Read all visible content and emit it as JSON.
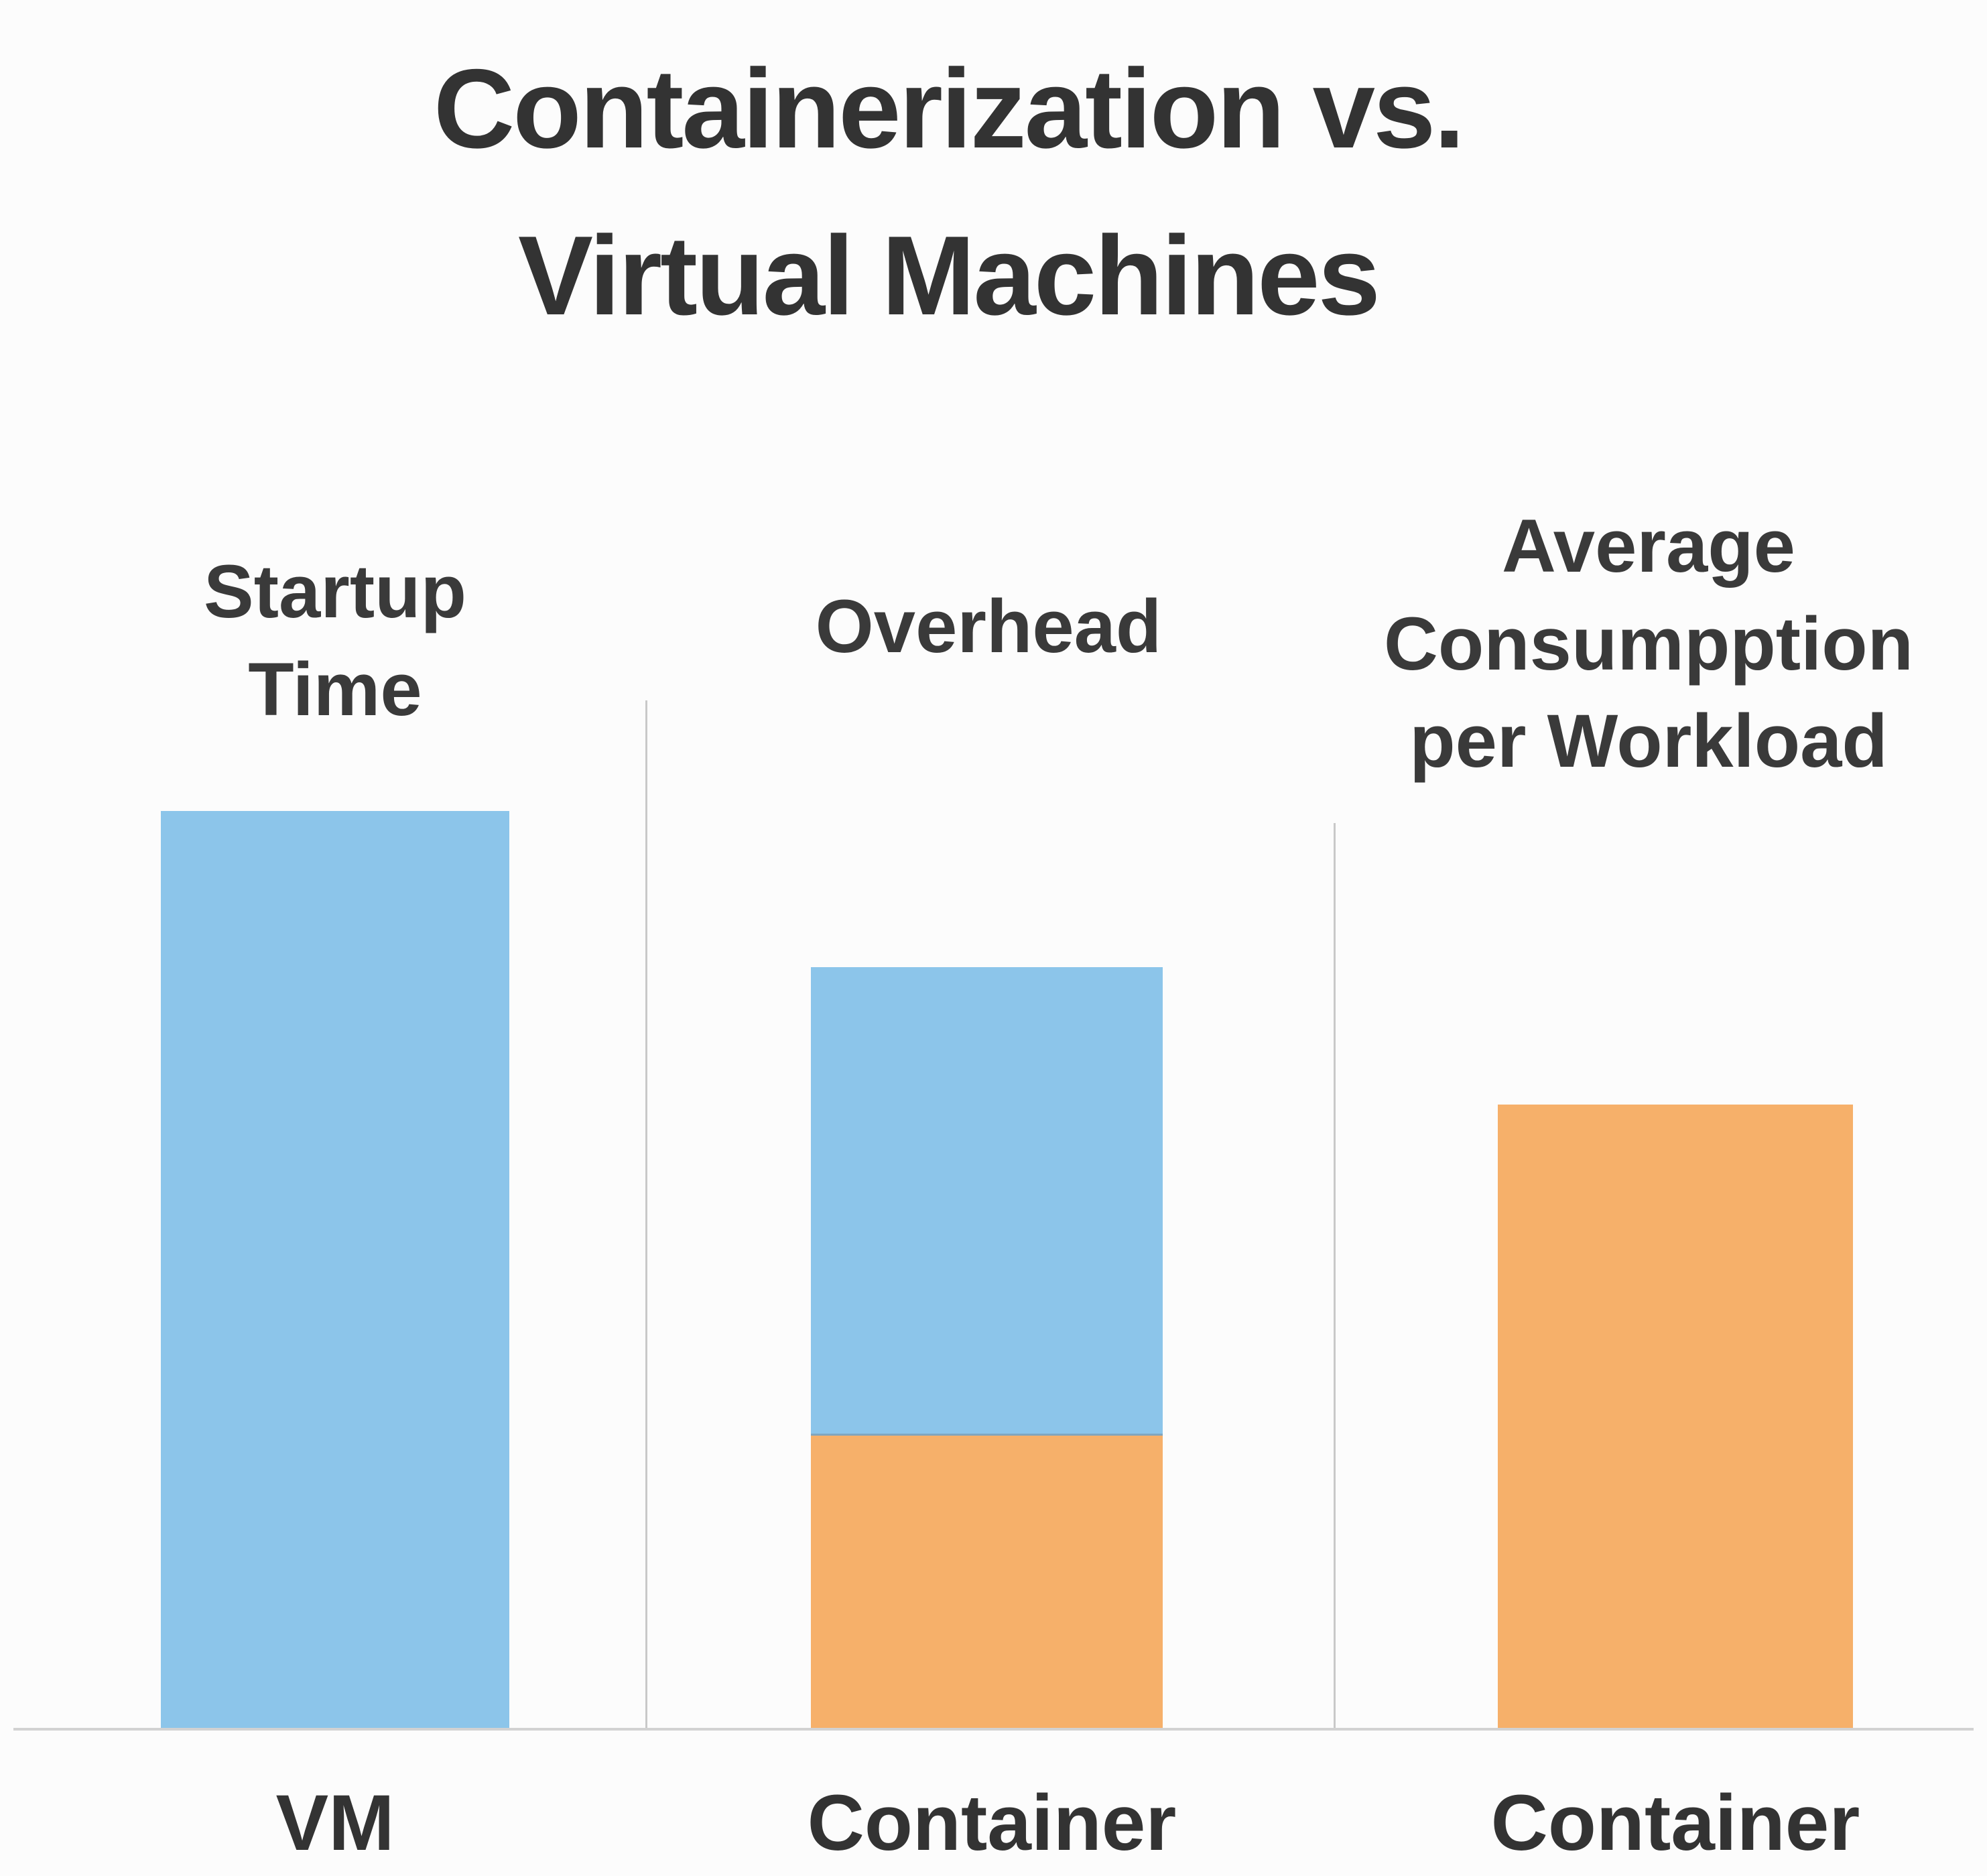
{
  "title": "Containerization vs.\nVirtual Machines",
  "chart_data": {
    "type": "bar",
    "title": "Containerization vs. Virtual Machines",
    "value_scale": "relative units, VM startup-time bar = 100 (estimated from bar heights)",
    "ylim": [
      0,
      100
    ],
    "grid": false,
    "legend": "none",
    "colors": {
      "blue": "#8CC5EA",
      "orange": "#F6B06A"
    },
    "groups": [
      {
        "header": "Startup Time",
        "x_label": "VM",
        "segments": [
          {
            "series": "VM",
            "color_key": "blue",
            "value": 100
          }
        ]
      },
      {
        "header": "Overhead",
        "x_label": "Container",
        "segments": [
          {
            "series": "Container",
            "color_key": "orange",
            "value": 32
          },
          {
            "series": "VM",
            "color_key": "blue",
            "value": 51
          }
        ]
      },
      {
        "header": "Average Consumpption per Workload",
        "x_label": "Container",
        "segments": [
          {
            "series": "Container",
            "color_key": "orange",
            "value": 68
          }
        ]
      }
    ]
  }
}
